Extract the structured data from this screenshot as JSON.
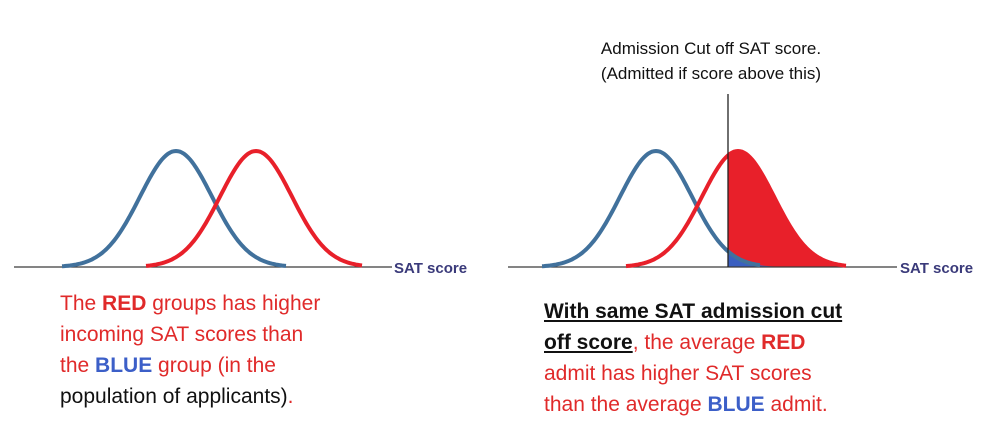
{
  "colors": {
    "red_curve": "#e8202a",
    "blue_curve": "#41719c",
    "red_text": "#e02a2a",
    "blue_text": "#3c5fc8",
    "axis": "#3a3a3a",
    "axis_label": "#3a3a7a",
    "fill_red": "#e8202a",
    "fill_blue": "#3a5fc0"
  },
  "left_panel": {
    "axis_label": "SAT score",
    "caption": {
      "line1_a": "The ",
      "line1_b": "RED",
      "line1_c": " groups has higher",
      "line2": "incoming SAT scores than",
      "line3_a": "the ",
      "line3_b": "BLUE",
      "line3_c": " group (in the",
      "line4_a": "population of applicants)",
      "line4_b": "."
    }
  },
  "right_panel": {
    "axis_label": "SAT score",
    "cutoff_annotation": {
      "line1": "Admission Cut off SAT score.",
      "line2": "(Admitted if score above this)"
    },
    "caption": {
      "line1": "With same SAT admission cut",
      "line2_a": "off score",
      "line2_b": ", the average ",
      "line2_c": "RED",
      "line3": "admit has higher SAT scores",
      "line4_a": "than the average ",
      "line4_b": "BLUE",
      "line4_c": " admit."
    }
  }
}
